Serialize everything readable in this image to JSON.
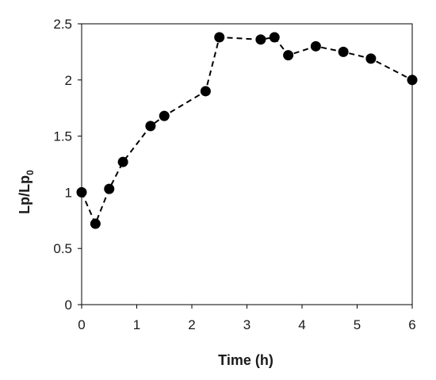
{
  "chart_data": {
    "type": "scatter",
    "title": "",
    "xlabel": "Time (h)",
    "ylabel_main": "Lp/Lp",
    "ylabel_sub": "0",
    "xlim": [
      0,
      6
    ],
    "ylim": [
      0,
      2.5
    ],
    "xticks": [
      0,
      1,
      2,
      3,
      4,
      5,
      6
    ],
    "yticks": [
      0,
      0.5,
      1,
      1.5,
      2,
      2.5
    ],
    "xtick_labels": [
      "0",
      "1",
      "2",
      "3",
      "4",
      "5",
      "6"
    ],
    "ytick_labels": [
      "0",
      "0.5",
      "1",
      "1.5",
      "2",
      "2.5"
    ],
    "grid": false,
    "legend": "none",
    "line_style": "dashed",
    "marker": "filled-circle",
    "color": "#000000",
    "series": [
      {
        "x": [
          0,
          0.25,
          0.5,
          0.75,
          1.25,
          1.5,
          2.25,
          2.5,
          3.25,
          3.5,
          3.75,
          4.25,
          4.75,
          5.25,
          6
        ],
        "y": [
          1.0,
          0.72,
          1.03,
          1.27,
          1.59,
          1.68,
          1.9,
          2.38,
          2.36,
          2.38,
          2.22,
          2.3,
          2.25,
          2.19,
          2.0
        ]
      }
    ]
  }
}
